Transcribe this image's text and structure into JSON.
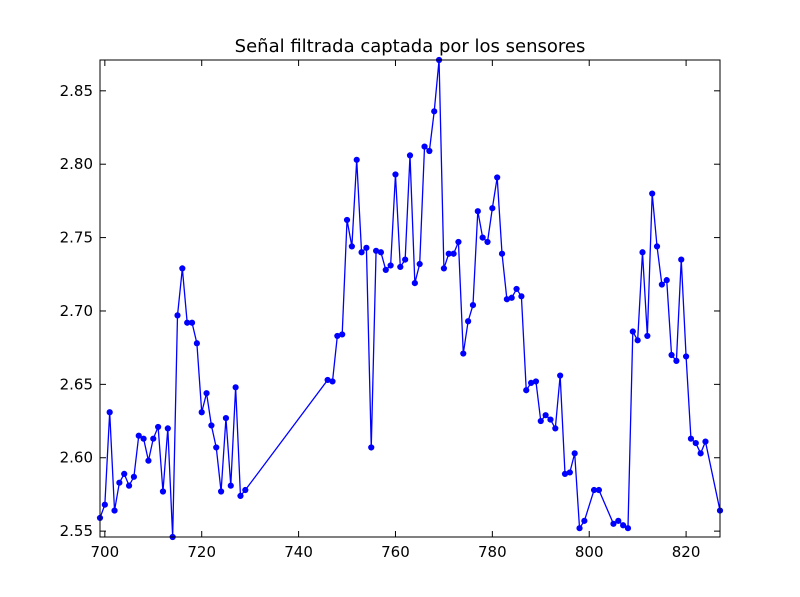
{
  "chart_data": {
    "type": "line",
    "title": "Señal filtrada captada por los sensores",
    "xlabel": "",
    "ylabel": "",
    "xlim": [
      699,
      827
    ],
    "ylim": [
      2.546,
      2.871
    ],
    "x_ticks": [
      700,
      720,
      740,
      760,
      780,
      800,
      820
    ],
    "y_ticks": [
      2.55,
      2.6,
      2.65,
      2.7,
      2.75,
      2.8,
      2.85
    ],
    "y_tick_labels": [
      "2.55",
      "2.60",
      "2.65",
      "2.70",
      "2.75",
      "2.80",
      "2.85"
    ],
    "grid": false,
    "legend": "none",
    "series": [
      {
        "color": "#0000ff",
        "marker": "dot",
        "points": [
          [
            699,
            2.559
          ],
          [
            700,
            2.568
          ],
          [
            701,
            2.631
          ],
          [
            702,
            2.564
          ],
          [
            703,
            2.583
          ],
          [
            704,
            2.589
          ],
          [
            705,
            2.581
          ],
          [
            706,
            2.587
          ],
          [
            707,
            2.615
          ],
          [
            708,
            2.613
          ],
          [
            709,
            2.598
          ],
          [
            710,
            2.613
          ],
          [
            711,
            2.621
          ],
          [
            712,
            2.577
          ],
          [
            713,
            2.62
          ],
          [
            714,
            2.546
          ],
          [
            715,
            2.697
          ],
          [
            716,
            2.729
          ],
          [
            717,
            2.692
          ],
          [
            718,
            2.692
          ],
          [
            719,
            2.678
          ],
          [
            720,
            2.631
          ],
          [
            721,
            2.644
          ],
          [
            722,
            2.622
          ],
          [
            723,
            2.607
          ],
          [
            724,
            2.577
          ],
          [
            725,
            2.627
          ],
          [
            726,
            2.581
          ],
          [
            727,
            2.648
          ],
          [
            728,
            2.574
          ],
          [
            729,
            2.578
          ],
          [
            746,
            2.653
          ],
          [
            747,
            2.652
          ],
          [
            748,
            2.683
          ],
          [
            749,
            2.684
          ],
          [
            750,
            2.762
          ],
          [
            751,
            2.744
          ],
          [
            752,
            2.803
          ],
          [
            753,
            2.74
          ],
          [
            754,
            2.743
          ],
          [
            755,
            2.607
          ],
          [
            756,
            2.741
          ],
          [
            757,
            2.74
          ],
          [
            758,
            2.728
          ],
          [
            759,
            2.731
          ],
          [
            760,
            2.793
          ],
          [
            761,
            2.73
          ],
          [
            762,
            2.735
          ],
          [
            763,
            2.806
          ],
          [
            764,
            2.719
          ],
          [
            765,
            2.732
          ],
          [
            766,
            2.812
          ],
          [
            767,
            2.809
          ],
          [
            768,
            2.836
          ],
          [
            769,
            2.871
          ],
          [
            770,
            2.729
          ],
          [
            771,
            2.739
          ],
          [
            772,
            2.739
          ],
          [
            773,
            2.747
          ],
          [
            774,
            2.671
          ],
          [
            775,
            2.693
          ],
          [
            776,
            2.704
          ],
          [
            777,
            2.768
          ],
          [
            778,
            2.75
          ],
          [
            779,
            2.747
          ],
          [
            780,
            2.77
          ],
          [
            781,
            2.791
          ],
          [
            782,
            2.739
          ],
          [
            783,
            2.708
          ],
          [
            784,
            2.709
          ],
          [
            785,
            2.715
          ],
          [
            786,
            2.71
          ],
          [
            787,
            2.646
          ],
          [
            788,
            2.651
          ],
          [
            789,
            2.652
          ],
          [
            790,
            2.625
          ],
          [
            791,
            2.629
          ],
          [
            792,
            2.626
          ],
          [
            793,
            2.62
          ],
          [
            794,
            2.656
          ],
          [
            795,
            2.589
          ],
          [
            796,
            2.59
          ],
          [
            797,
            2.603
          ],
          [
            798,
            2.552
          ],
          [
            799,
            2.557
          ],
          [
            801,
            2.578
          ],
          [
            802,
            2.578
          ],
          [
            805,
            2.555
          ],
          [
            806,
            2.557
          ],
          [
            807,
            2.554
          ],
          [
            808,
            2.552
          ],
          [
            809,
            2.686
          ],
          [
            810,
            2.68
          ],
          [
            811,
            2.74
          ],
          [
            812,
            2.683
          ],
          [
            813,
            2.78
          ],
          [
            814,
            2.744
          ],
          [
            815,
            2.718
          ],
          [
            816,
            2.721
          ],
          [
            817,
            2.67
          ],
          [
            818,
            2.666
          ],
          [
            819,
            2.735
          ],
          [
            820,
            2.669
          ],
          [
            821,
            2.613
          ],
          [
            822,
            2.61
          ],
          [
            823,
            2.603
          ],
          [
            824,
            2.611
          ],
          [
            827,
            2.564
          ]
        ]
      }
    ]
  }
}
